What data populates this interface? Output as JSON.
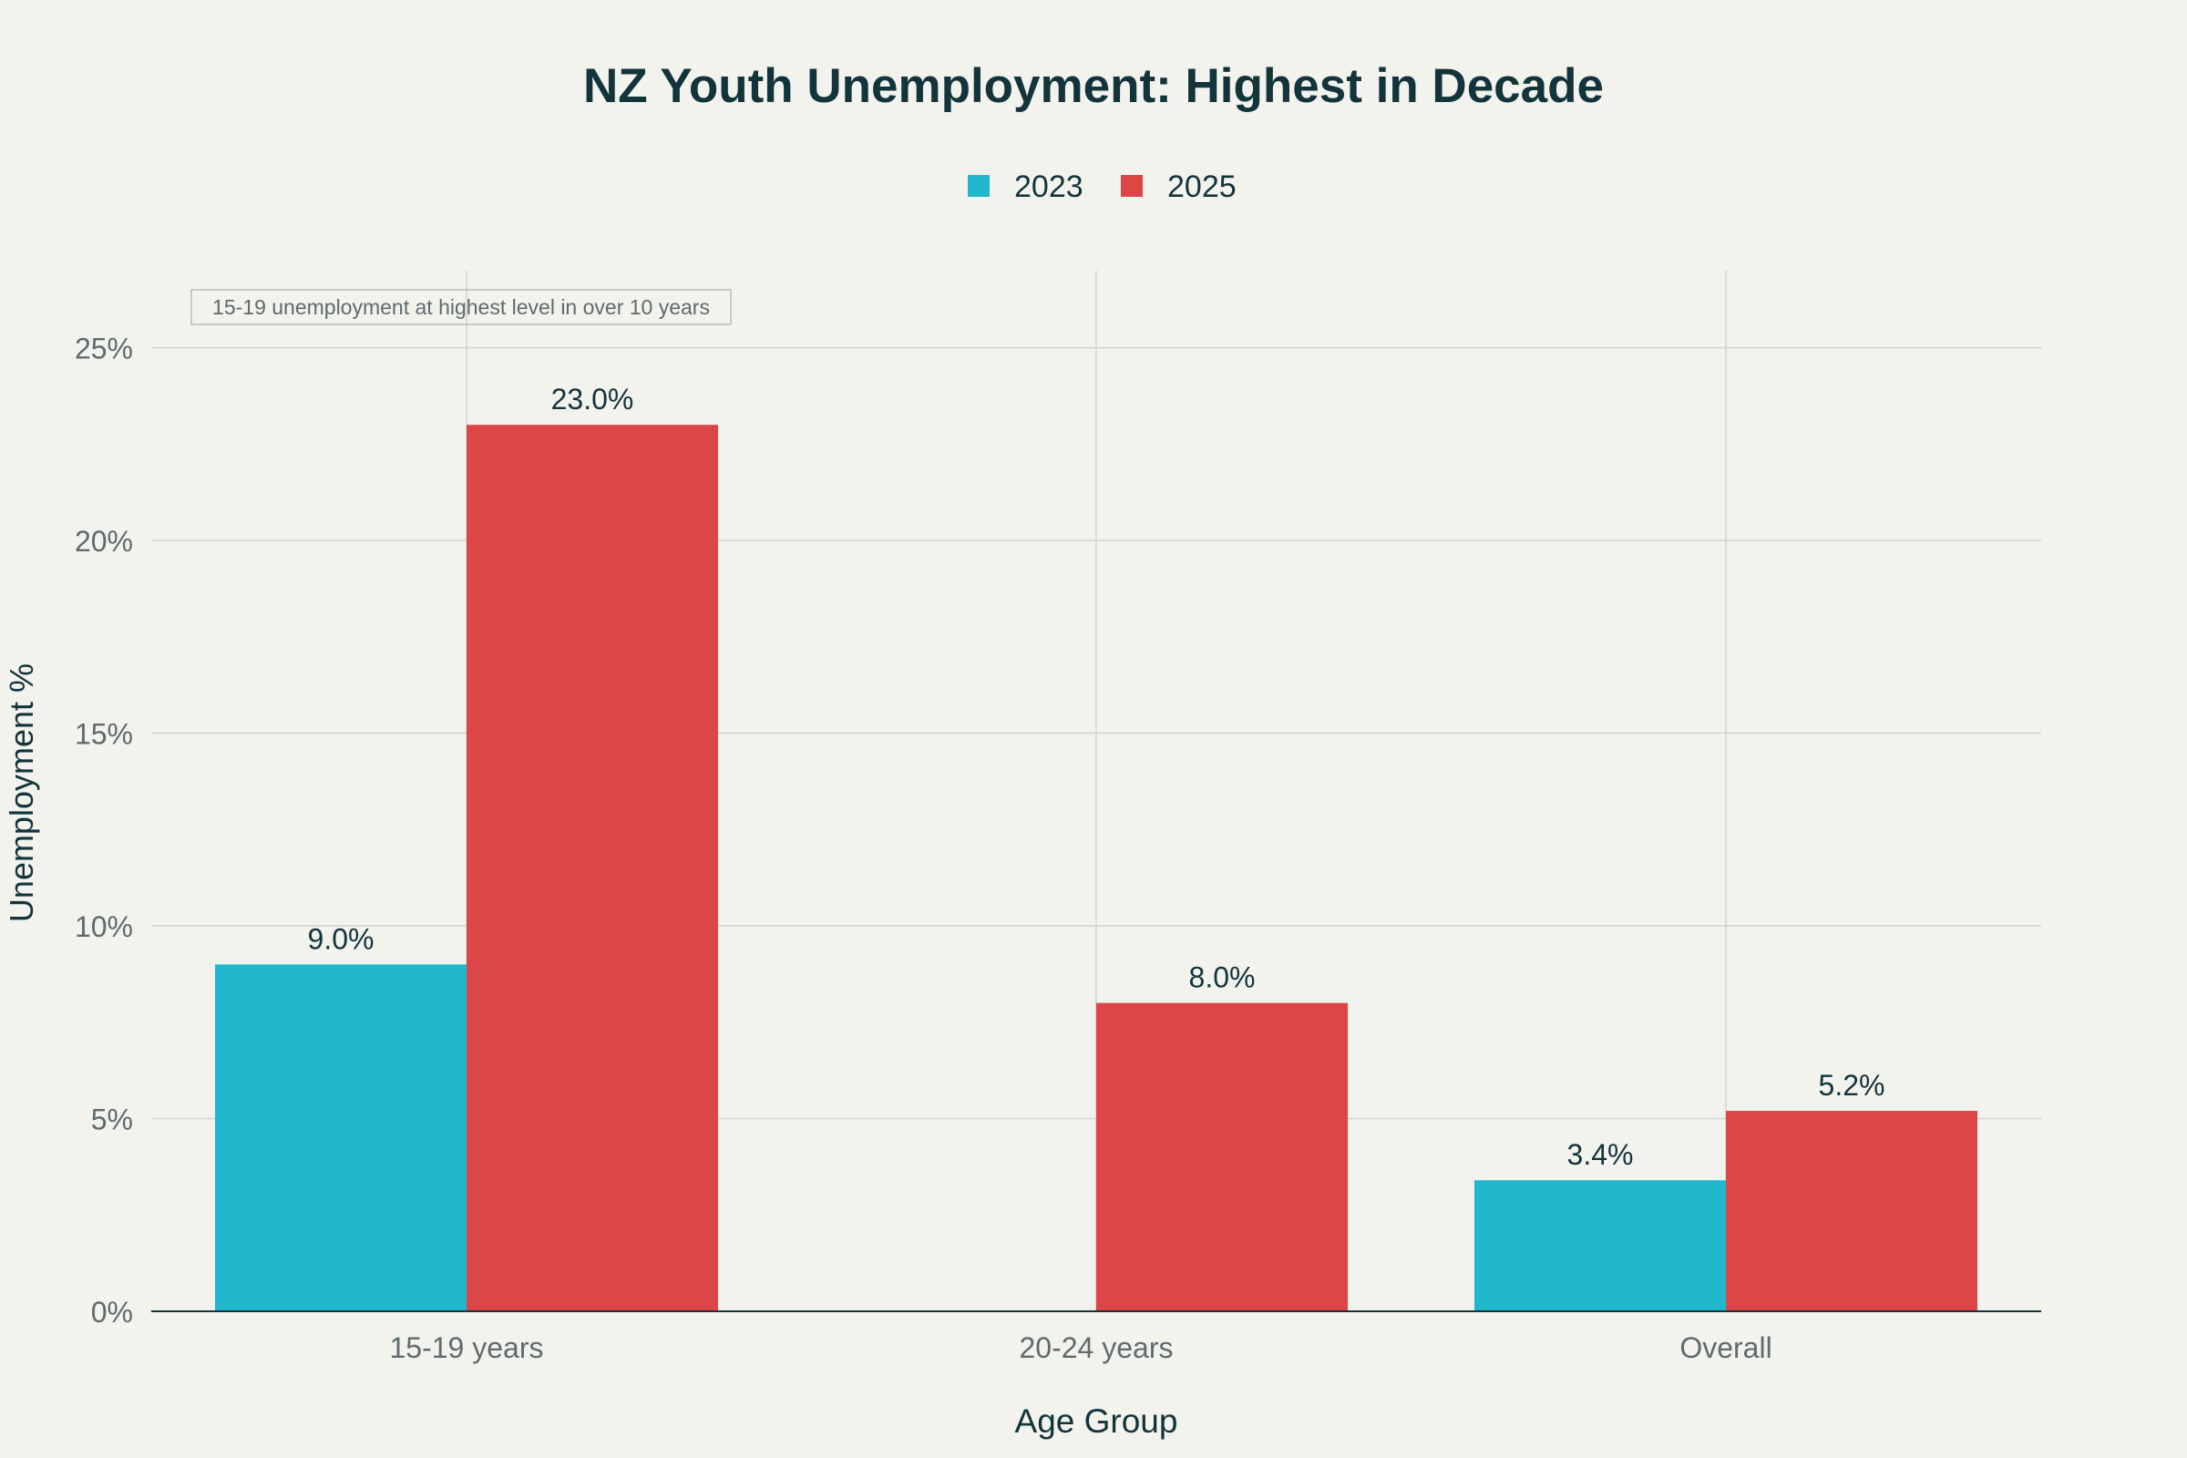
{
  "chart_data": {
    "type": "bar",
    "title": "NZ Youth Unemployment: Highest in Decade",
    "xlabel": "Age Group",
    "ylabel": "Unemployment %",
    "categories": [
      "15-19 years",
      "20-24 years",
      "Overall"
    ],
    "series": [
      {
        "name": "2023",
        "color": "#21b8cd",
        "values": [
          9.0,
          null,
          3.4
        ],
        "labels": [
          "9.0%",
          null,
          "3.4%"
        ]
      },
      {
        "name": "2025",
        "color": "#dc4647",
        "values": [
          23.0,
          8.0,
          5.2
        ],
        "labels": [
          "23.0%",
          "8.0%",
          "5.2%"
        ]
      }
    ],
    "ylim": [
      0,
      27
    ],
    "yticks": [
      0,
      5,
      10,
      15,
      20,
      25
    ],
    "ytick_labels": [
      "0%",
      "5%",
      "10%",
      "15%",
      "20%",
      "25%"
    ],
    "grid": true,
    "legend": "top-center",
    "annotation": "15-19 unemployment at highest level in over 10 years"
  },
  "colors": {
    "background": "#f3f3ee",
    "text": "#13343b",
    "tick_text": "#5f6b6d",
    "grid": "#d2d3cf"
  }
}
